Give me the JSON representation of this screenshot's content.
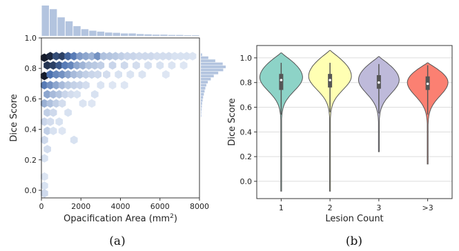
{
  "captions": {
    "a": "(a)",
    "b": "(b)"
  },
  "chart_data": [
    {
      "type": "hexbin",
      "panel": "(a)",
      "xlabel": "Opacification Area (mm",
      "xlabel_sup": "2",
      "xlabel_tail": ")",
      "ylabel": "Dice Score",
      "xlim": [
        0,
        8000
      ],
      "ylim": [
        -0.05,
        1.0
      ],
      "xticks": [
        "0",
        "2000",
        "4000",
        "6000",
        "8000"
      ],
      "yticks": [
        "0.0",
        "0.2",
        "0.4",
        "0.6",
        "0.8",
        "1.0"
      ],
      "color": "#4c72b0",
      "marginal_x_counts": [
        {
          "x": 200,
          "count": 100
        },
        {
          "x": 600,
          "count": 88
        },
        {
          "x": 1000,
          "count": 61
        },
        {
          "x": 1400,
          "count": 48
        },
        {
          "x": 1800,
          "count": 32
        },
        {
          "x": 2200,
          "count": 22
        },
        {
          "x": 2600,
          "count": 17
        },
        {
          "x": 3000,
          "count": 14
        },
        {
          "x": 3400,
          "count": 11
        },
        {
          "x": 3800,
          "count": 10
        },
        {
          "x": 4200,
          "count": 8
        },
        {
          "x": 4600,
          "count": 8
        },
        {
          "x": 5000,
          "count": 6
        },
        {
          "x": 5400,
          "count": 5
        },
        {
          "x": 5800,
          "count": 4
        },
        {
          "x": 6200,
          "count": 4
        },
        {
          "x": 6600,
          "count": 3
        },
        {
          "x": 7000,
          "count": 3
        },
        {
          "x": 7400,
          "count": 2
        },
        {
          "x": 7800,
          "count": 2
        }
      ],
      "marginal_y_counts": [
        {
          "y": 0.89,
          "count": 5
        },
        {
          "y": 0.87,
          "count": 30
        },
        {
          "y": 0.85,
          "count": 58
        },
        {
          "y": 0.83,
          "count": 88
        },
        {
          "y": 0.81,
          "count": 100
        },
        {
          "y": 0.79,
          "count": 90
        },
        {
          "y": 0.77,
          "count": 70
        },
        {
          "y": 0.75,
          "count": 52
        },
        {
          "y": 0.73,
          "count": 40
        },
        {
          "y": 0.71,
          "count": 28
        },
        {
          "y": 0.69,
          "count": 22
        },
        {
          "y": 0.67,
          "count": 18
        },
        {
          "y": 0.65,
          "count": 15
        },
        {
          "y": 0.63,
          "count": 12
        },
        {
          "y": 0.61,
          "count": 9
        },
        {
          "y": 0.59,
          "count": 7
        },
        {
          "y": 0.57,
          "count": 5
        },
        {
          "y": 0.55,
          "count": 4
        },
        {
          "y": 0.53,
          "count": 3
        },
        {
          "y": 0.51,
          "count": 2
        },
        {
          "y": 0.49,
          "count": 2
        }
      ],
      "hex_points": [
        {
          "x": 150,
          "y": 0.87,
          "d": 0.95
        },
        {
          "x": 450,
          "y": 0.88,
          "d": 0.9
        },
        {
          "x": 300,
          "y": 0.82,
          "d": 0.85
        },
        {
          "x": 150,
          "y": 0.75,
          "d": 0.95
        },
        {
          "x": 600,
          "y": 0.82,
          "d": 0.8
        },
        {
          "x": 750,
          "y": 0.88,
          "d": 0.75
        },
        {
          "x": 450,
          "y": 0.76,
          "d": 0.6
        },
        {
          "x": 900,
          "y": 0.82,
          "d": 0.7
        },
        {
          "x": 1050,
          "y": 0.88,
          "d": 0.8
        },
        {
          "x": 1200,
          "y": 0.82,
          "d": 0.55
        },
        {
          "x": 750,
          "y": 0.76,
          "d": 0.5
        },
        {
          "x": 1350,
          "y": 0.88,
          "d": 0.65
        },
        {
          "x": 1050,
          "y": 0.76,
          "d": 0.45
        },
        {
          "x": 1500,
          "y": 0.82,
          "d": 0.5
        },
        {
          "x": 1650,
          "y": 0.88,
          "d": 0.55
        },
        {
          "x": 1800,
          "y": 0.82,
          "d": 0.35
        },
        {
          "x": 1950,
          "y": 0.88,
          "d": 0.4
        },
        {
          "x": 1350,
          "y": 0.76,
          "d": 0.35
        },
        {
          "x": 2100,
          "y": 0.82,
          "d": 0.28
        },
        {
          "x": 2250,
          "y": 0.88,
          "d": 0.35
        },
        {
          "x": 2550,
          "y": 0.88,
          "d": 0.3
        },
        {
          "x": 2400,
          "y": 0.82,
          "d": 0.2
        },
        {
          "x": 2850,
          "y": 0.88,
          "d": 0.45
        },
        {
          "x": 3150,
          "y": 0.88,
          "d": 0.22
        },
        {
          "x": 2700,
          "y": 0.82,
          "d": 0.18
        },
        {
          "x": 3450,
          "y": 0.88,
          "d": 0.2
        },
        {
          "x": 3000,
          "y": 0.82,
          "d": 0.15
        },
        {
          "x": 3750,
          "y": 0.88,
          "d": 0.18
        },
        {
          "x": 4050,
          "y": 0.88,
          "d": 0.15
        },
        {
          "x": 4350,
          "y": 0.88,
          "d": 0.12
        },
        {
          "x": 4650,
          "y": 0.88,
          "d": 0.12
        },
        {
          "x": 4950,
          "y": 0.88,
          "d": 0.1
        },
        {
          "x": 5250,
          "y": 0.88,
          "d": 0.1
        },
        {
          "x": 5550,
          "y": 0.88,
          "d": 0.1
        },
        {
          "x": 5850,
          "y": 0.88,
          "d": 0.08
        },
        {
          "x": 6150,
          "y": 0.88,
          "d": 0.08
        },
        {
          "x": 6450,
          "y": 0.88,
          "d": 0.08
        },
        {
          "x": 6750,
          "y": 0.88,
          "d": 0.06
        },
        {
          "x": 7050,
          "y": 0.88,
          "d": 0.06
        },
        {
          "x": 7350,
          "y": 0.88,
          "d": 0.06
        },
        {
          "x": 7650,
          "y": 0.88,
          "d": 0.05
        },
        {
          "x": 3600,
          "y": 0.82,
          "d": 0.12
        },
        {
          "x": 4200,
          "y": 0.82,
          "d": 0.1
        },
        {
          "x": 4800,
          "y": 0.82,
          "d": 0.08
        },
        {
          "x": 5400,
          "y": 0.82,
          "d": 0.07
        },
        {
          "x": 6000,
          "y": 0.82,
          "d": 0.06
        },
        {
          "x": 150,
          "y": 0.69,
          "d": 0.55
        },
        {
          "x": 450,
          "y": 0.69,
          "d": 0.45
        },
        {
          "x": 750,
          "y": 0.69,
          "d": 0.35
        },
        {
          "x": 1050,
          "y": 0.69,
          "d": 0.25
        },
        {
          "x": 300,
          "y": 0.63,
          "d": 0.35
        },
        {
          "x": 600,
          "y": 0.63,
          "d": 0.25
        },
        {
          "x": 900,
          "y": 0.63,
          "d": 0.2
        },
        {
          "x": 1650,
          "y": 0.76,
          "d": 0.25
        },
        {
          "x": 1950,
          "y": 0.76,
          "d": 0.2
        },
        {
          "x": 2250,
          "y": 0.76,
          "d": 0.15
        },
        {
          "x": 2550,
          "y": 0.76,
          "d": 0.12
        },
        {
          "x": 1350,
          "y": 0.69,
          "d": 0.18
        },
        {
          "x": 1650,
          "y": 0.69,
          "d": 0.14
        },
        {
          "x": 1950,
          "y": 0.69,
          "d": 0.12
        },
        {
          "x": 150,
          "y": 0.57,
          "d": 0.3
        },
        {
          "x": 450,
          "y": 0.57,
          "d": 0.22
        },
        {
          "x": 750,
          "y": 0.57,
          "d": 0.15
        },
        {
          "x": 1200,
          "y": 0.63,
          "d": 0.12
        },
        {
          "x": 300,
          "y": 0.51,
          "d": 0.15
        },
        {
          "x": 600,
          "y": 0.51,
          "d": 0.1
        },
        {
          "x": 150,
          "y": 0.45,
          "d": 0.12
        },
        {
          "x": 450,
          "y": 0.45,
          "d": 0.08
        },
        {
          "x": 300,
          "y": 0.39,
          "d": 0.15
        },
        {
          "x": 150,
          "y": 0.33,
          "d": 0.1
        },
        {
          "x": 1050,
          "y": 0.57,
          "d": 0.08
        },
        {
          "x": 1500,
          "y": 0.63,
          "d": 0.08
        },
        {
          "x": 2850,
          "y": 0.76,
          "d": 0.1
        },
        {
          "x": 3300,
          "y": 0.76,
          "d": 0.08
        },
        {
          "x": 3900,
          "y": 0.76,
          "d": 0.06
        },
        {
          "x": 2250,
          "y": 0.69,
          "d": 0.08
        },
        {
          "x": 2700,
          "y": 0.63,
          "d": 0.06
        },
        {
          "x": 900,
          "y": 0.45,
          "d": 0.06
        },
        {
          "x": 1350,
          "y": 0.51,
          "d": 0.06
        },
        {
          "x": 2100,
          "y": 0.57,
          "d": 0.05
        },
        {
          "x": 1800,
          "y": 0.63,
          "d": 0.06
        },
        {
          "x": 600,
          "y": 0.39,
          "d": 0.06
        },
        {
          "x": 300,
          "y": 0.27,
          "d": 0.08
        },
        {
          "x": 150,
          "y": 0.21,
          "d": 0.06
        },
        {
          "x": 1650,
          "y": 0.33,
          "d": 0.06
        },
        {
          "x": 150,
          "y": 0.09,
          "d": 0.05
        },
        {
          "x": 150,
          "y": 0.03,
          "d": 0.06
        },
        {
          "x": 150,
          "y": -0.02,
          "d": 0.1
        },
        {
          "x": 4500,
          "y": 0.76,
          "d": 0.05
        },
        {
          "x": 5100,
          "y": 0.76,
          "d": 0.05
        },
        {
          "x": 6300,
          "y": 0.76,
          "d": 0.04
        },
        {
          "x": 2550,
          "y": 0.57,
          "d": 0.04
        },
        {
          "x": 3000,
          "y": 0.69,
          "d": 0.05
        },
        {
          "x": 3600,
          "y": 0.69,
          "d": 0.04
        },
        {
          "x": 4200,
          "y": 0.69,
          "d": 0.04
        },
        {
          "x": 1050,
          "y": 0.39,
          "d": 0.04
        },
        {
          "x": 7200,
          "y": 0.82,
          "d": 0.04
        },
        {
          "x": 6600,
          "y": 0.82,
          "d": 0.05
        }
      ]
    },
    {
      "type": "violin",
      "panel": "(b)",
      "xlabel": "Lesion Count",
      "ylabel": "Dice Score",
      "categories": [
        "1",
        "2",
        "3",
        ">3"
      ],
      "ylim": [
        -0.14,
        1.1
      ],
      "yticks": [
        "0.0",
        "0.2",
        "0.4",
        "0.6",
        "0.8",
        "1.0"
      ],
      "grid": true,
      "series": [
        {
          "category": "1",
          "color": "#8dd3c7",
          "min": -0.08,
          "max": 1.04,
          "q1": 0.74,
          "median": 0.82,
          "q3": 0.87,
          "mode": 0.84,
          "width": 1.0
        },
        {
          "category": "2",
          "color": "#ffffb3",
          "min": -0.08,
          "max": 1.06,
          "q1": 0.76,
          "median": 0.82,
          "q3": 0.87,
          "mode": 0.85,
          "width": 1.0
        },
        {
          "category": "3",
          "color": "#bebada",
          "min": 0.24,
          "max": 1.01,
          "q1": 0.75,
          "median": 0.8,
          "q3": 0.86,
          "mode": 0.82,
          "width": 0.95
        },
        {
          "category": ">3",
          "color": "#fb8072",
          "min": 0.14,
          "max": 0.96,
          "q1": 0.74,
          "median": 0.79,
          "q3": 0.85,
          "mode": 0.8,
          "width": 0.95
        }
      ]
    }
  ]
}
